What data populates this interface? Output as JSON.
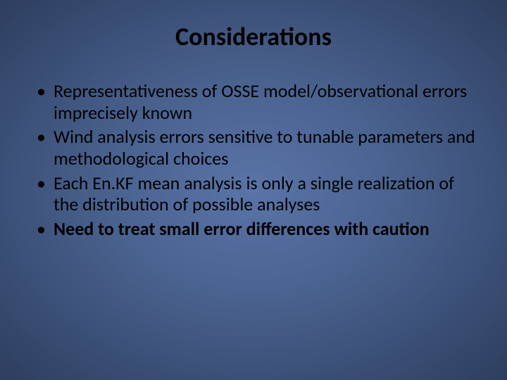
{
  "background_gradient": {
    "inner": "#5a74a8",
    "mid": "#4a628f",
    "outer": "#2d3e5f"
  },
  "text_color": "#000000",
  "title": {
    "text": "Considerations",
    "fontsize": 36,
    "weight": 700,
    "align": "center"
  },
  "bullets": [
    {
      "text": "Representativeness of OSSE model/observational errors imprecisely known",
      "bold": false
    },
    {
      "text": "Wind analysis errors sensitive to tunable parameters and methodological choices",
      "bold": false
    },
    {
      "text": "Each En.KF mean analysis is only a single realization of the distribution of possible analyses",
      "bold": false
    },
    {
      "text": "Need to treat small error differences with caution",
      "bold": true
    }
  ],
  "body_fontsize": 26,
  "bullet_marker": "•"
}
